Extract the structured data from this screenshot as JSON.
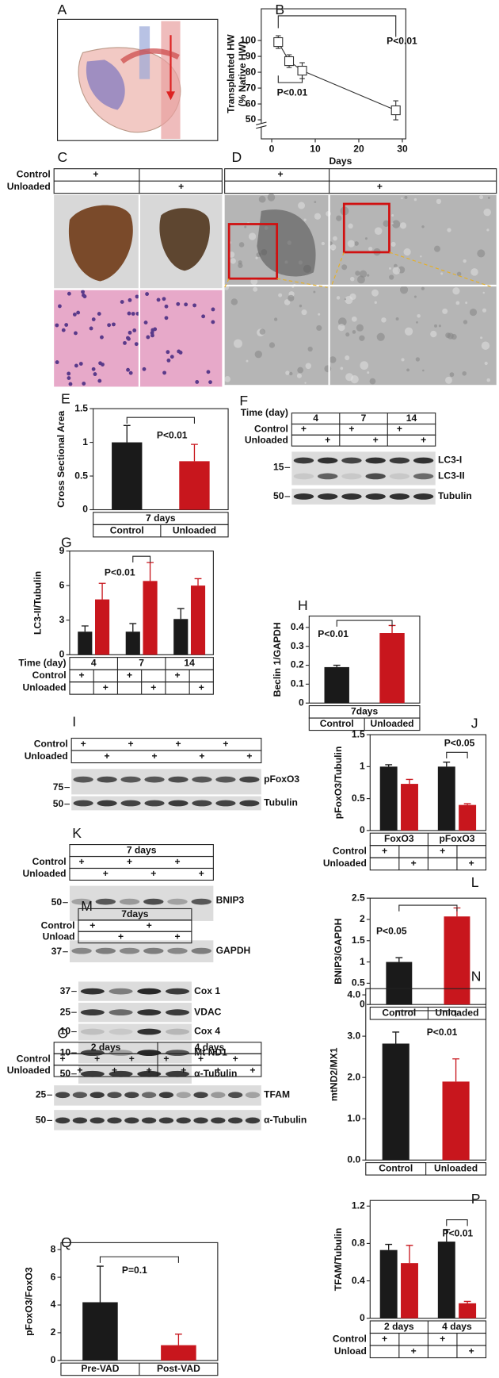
{
  "chart_data": [
    {
      "type": "line",
      "label": "B",
      "ylabel": [
        "Transplanted HW",
        "(% Native HW)"
      ],
      "xlabel": "Days",
      "x": [
        1.5,
        4,
        7,
        28.5
      ],
      "values": [
        99,
        87,
        81,
        56
      ],
      "errors": [
        4,
        4,
        5,
        6
      ],
      "color": "#333333",
      "xlim": [
        -2.4,
        30.8
      ],
      "ylim": [
        38,
        120
      ],
      "xticks": [
        0,
        10,
        20,
        30
      ],
      "yticks": [
        50,
        60,
        70,
        80,
        90,
        100
      ],
      "annotations": [
        "P<0.01",
        "P<0.01"
      ]
    },
    {
      "type": "bar",
      "label": "E",
      "ylabel": "Cross Sectional Area",
      "categories": [
        "Control",
        "Unloaded"
      ],
      "values": [
        1.0,
        0.72
      ],
      "errors": [
        0.25,
        0.25
      ],
      "colors": [
        "#1a1a1a",
        "#c8161d"
      ],
      "ylim": [
        0,
        1.5
      ],
      "yticks": [
        0,
        0.5,
        1,
        1.5
      ],
      "table_header": "7 days",
      "annotations": [
        "P<0.01"
      ]
    },
    {
      "type": "bar",
      "label": "G",
      "ylabel": "LC3-II/Tubulin",
      "table_title": "Time (day)",
      "categories": [
        "4",
        "7",
        "14"
      ],
      "series": [
        {
          "name": "Control",
          "color": "#1a1a1a",
          "values": [
            2.0,
            2.0,
            3.1
          ],
          "errors": [
            0.5,
            0.7,
            0.9
          ]
        },
        {
          "name": "Unloaded",
          "color": "#c8161d",
          "values": [
            4.8,
            6.4,
            6.0
          ],
          "errors": [
            1.4,
            1.6,
            0.6
          ]
        }
      ],
      "mark": "+",
      "ylim": [
        0,
        9
      ],
      "yticks": [
        0,
        3,
        6,
        9
      ],
      "annotations": [
        "P<0.01"
      ]
    },
    {
      "type": "bar",
      "label": "H",
      "ylabel": "Beclin 1/GAPDH",
      "categories": [
        "Control",
        "Unloaded"
      ],
      "values": [
        0.19,
        0.37
      ],
      "errors": [
        0.01,
        0.04
      ],
      "colors": [
        "#1a1a1a",
        "#c8161d"
      ],
      "ylim": [
        0,
        0.46
      ],
      "yticks": [
        0,
        0.1,
        0.2,
        0.3,
        0.4
      ],
      "table_header": "7days",
      "annotations": [
        "P<0.01"
      ]
    },
    {
      "type": "bar",
      "label": "J",
      "ylabel": "pFoxO3/Tubulin",
      "categories": [
        "FoxO3",
        "pFoxO3"
      ],
      "series": [
        {
          "name": "Control",
          "color": "#1a1a1a",
          "values": [
            1.0,
            1.0
          ],
          "errors": [
            0.03,
            0.07
          ]
        },
        {
          "name": "Unloaded",
          "color": "#c8161d",
          "values": [
            0.73,
            0.4
          ],
          "errors": [
            0.07,
            0.02
          ]
        }
      ],
      "mark": "+",
      "ylim": [
        0,
        1.5
      ],
      "yticks": [
        0,
        0.5,
        1,
        1.5
      ],
      "annotations": [
        "P<0.05"
      ]
    },
    {
      "type": "bar",
      "label": "L",
      "ylabel": "BNIP3/GAPDH",
      "categories": [
        "Control",
        "Unloaded"
      ],
      "values": [
        1.0,
        2.07
      ],
      "errors": [
        0.1,
        0.2
      ],
      "colors": [
        "#1a1a1a",
        "#c8161d"
      ],
      "ylim": [
        0,
        2.5
      ],
      "yticks": [
        0,
        0.5,
        1,
        1.5,
        2,
        2.5
      ],
      "annotations": [
        "P<0.05"
      ]
    },
    {
      "type": "bar",
      "label": "N",
      "ylabel": "mtND2/MX1",
      "categories": [
        "Control",
        "Unloaded"
      ],
      "values": [
        2.82,
        1.9
      ],
      "errors": [
        0.28,
        0.55
      ],
      "colors": [
        "#1a1a1a",
        "#c8161d"
      ],
      "ylim": [
        0,
        4.15
      ],
      "yticks": [
        {
          "value": 0,
          "label": "0.0"
        },
        {
          "value": 1,
          "label": "1.0"
        },
        {
          "value": 2,
          "label": "2.0"
        },
        {
          "value": 3,
          "label": "3.0"
        },
        {
          "value": 4,
          "label": "4.0"
        }
      ],
      "annotations": [
        "P<0.01"
      ]
    },
    {
      "type": "bar",
      "label": "P",
      "ylabel": "TFAM/Tubulin",
      "categories": [
        "2 days",
        "4 days"
      ],
      "series": [
        {
          "name": "Control",
          "color": "#1a1a1a",
          "values": [
            0.73,
            0.82
          ],
          "errors": [
            0.06,
            0.13
          ]
        },
        {
          "name": "Unload",
          "color": "#c8161d",
          "values": [
            0.59,
            0.16
          ],
          "errors": [
            0.19,
            0.02
          ]
        }
      ],
      "mark": "+",
      "ylim": [
        0,
        1.26
      ],
      "yticks": [
        0,
        0.4,
        0.8,
        1.2
      ],
      "annotations": [
        "P<0.01"
      ]
    },
    {
      "type": "bar",
      "label": "Q",
      "ylabel": "pFoxO3/FoxO3",
      "categories": [
        "Pre-VAD",
        "Post-VAD"
      ],
      "values": [
        4.2,
        1.1
      ],
      "errors": [
        2.6,
        0.8
      ],
      "colors": [
        "#1a1a1a",
        "#c8161d"
      ],
      "ylim": [
        0,
        8.5
      ],
      "yticks": [
        0,
        2,
        4,
        6,
        8
      ],
      "annotations": [
        "P=0.1"
      ]
    }
  ],
  "image_panels": [
    {
      "label": "A"
    },
    {
      "label": "C",
      "rows": [
        "Control",
        "Unloaded"
      ],
      "mark": "+"
    },
    {
      "label": "D",
      "mark": "+"
    }
  ],
  "blots": [
    {
      "label": "F",
      "title": "Time (day)",
      "headers": [
        "4",
        "7",
        "14"
      ],
      "rows": [
        "Control",
        "Unloaded"
      ],
      "mark": "+",
      "markers": [
        "15",
        "50"
      ],
      "bands": [
        "LC3-I",
        "LC3-II",
        "Tubulin"
      ]
    },
    {
      "label": "I",
      "rows": [
        "Control",
        "Unloaded"
      ],
      "mark": "+",
      "markers": [
        "75",
        "50"
      ],
      "bands": [
        "pFoxO3",
        "Tubulin"
      ]
    },
    {
      "label": "K",
      "headers": [
        "7 days"
      ],
      "rows": [
        "Control",
        "Unloaded"
      ],
      "mark": "+",
      "markers": [
        "50",
        "37"
      ],
      "bands": [
        "BNIP3",
        "GAPDH"
      ]
    },
    {
      "label": "M",
      "headers": [
        "7days"
      ],
      "rows": [
        "Control",
        "Unload"
      ],
      "mark": "+",
      "markers": [
        "37",
        "25",
        "10",
        "10",
        "50"
      ],
      "bands": [
        "Cox 1",
        "VDAC",
        "Cox 4",
        "Mt ND1",
        "α-Tubulin"
      ]
    },
    {
      "label": "O",
      "headers": [
        "2 days",
        "4 days"
      ],
      "rows": [
        "Control",
        "Unloaded"
      ],
      "mark": "+",
      "markers": [
        "25",
        "50"
      ],
      "bands": [
        "TFAM",
        "α-Tubulin"
      ]
    }
  ]
}
